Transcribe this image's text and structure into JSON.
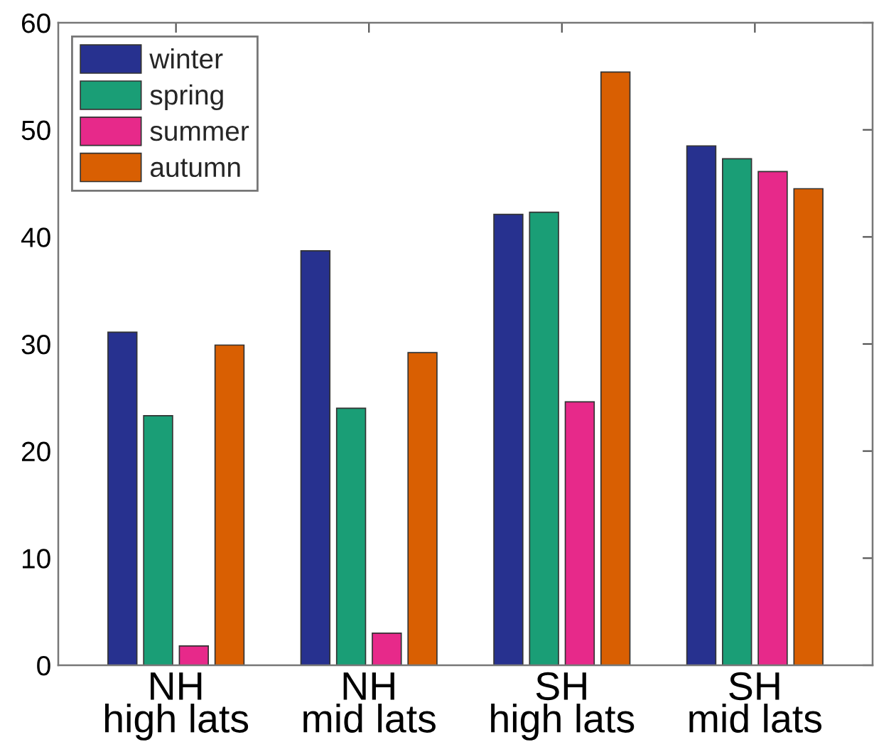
{
  "chart_data": {
    "type": "bar",
    "categories": [
      "NH\nhigh lats",
      "NH\nmid lats",
      "SH\nhigh lats",
      "SH\nmid lats"
    ],
    "series": [
      {
        "name": "winter",
        "color": "#27318f",
        "values": [
          31.1,
          38.7,
          42.1,
          48.5
        ]
      },
      {
        "name": "spring",
        "color": "#1a9e76",
        "values": [
          23.3,
          24.0,
          42.3,
          47.3
        ]
      },
      {
        "name": "summer",
        "color": "#e7298a",
        "values": [
          1.8,
          3.0,
          24.6,
          46.1
        ]
      },
      {
        "name": "autumn",
        "color": "#d95f02",
        "values": [
          29.9,
          29.2,
          55.4,
          44.5
        ]
      }
    ],
    "ylim": [
      0,
      60
    ],
    "yticks": [
      0,
      10,
      20,
      30,
      40,
      50,
      60
    ],
    "grid": false,
    "legend": "top left"
  }
}
